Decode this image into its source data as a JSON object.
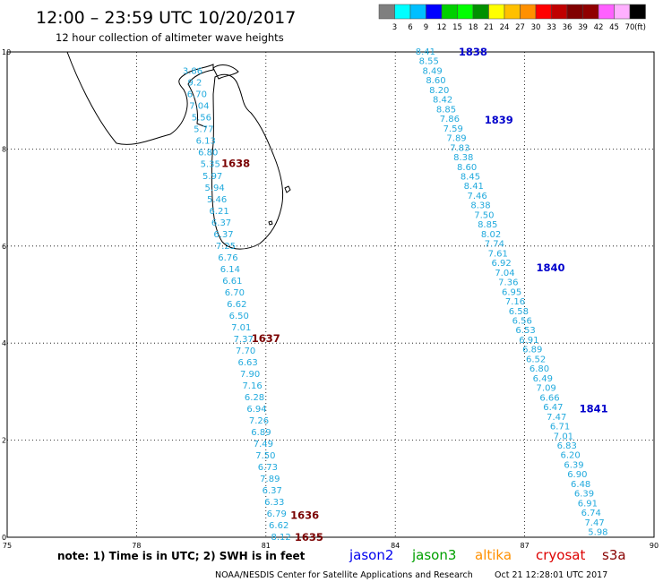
{
  "header": {
    "title": "12:00 – 23:59 UTC 10/20/2017",
    "subtitle": "12 hour collection of altimeter wave heights"
  },
  "scale": {
    "labels": [
      "3",
      "6",
      "9",
      "12",
      "15",
      "18",
      "21",
      "24",
      "27",
      "30",
      "33",
      "36",
      "39",
      "42",
      "45",
      "70",
      "(ft)"
    ],
    "colors": [
      "#7f7f7f",
      "#00ffff",
      "#00bfff",
      "#0000ff",
      "#00d000",
      "#00ff00",
      "#009000",
      "#ffff00",
      "#ffc000",
      "#ff9000",
      "#ff0000",
      "#c00000",
      "#800000",
      "#900000",
      "#ff60ff",
      "#ffb0ff",
      "#000000"
    ]
  },
  "map": {
    "lon_range": [
      75,
      90
    ],
    "lat_range": [
      0,
      10
    ],
    "x_ticks": [
      "75",
      "78",
      "81",
      "84",
      "87",
      "90"
    ],
    "y_ticks": [
      "0",
      "2",
      "4",
      "6",
      "8",
      "10"
    ],
    "value_color": "#22aadd",
    "tracks": [
      {
        "values": [
          "3.86",
          "9.2",
          "6.70",
          "7.04",
          "5.56",
          "5.77",
          "6.13",
          "6.80",
          "5.35",
          "5.97",
          "5.94",
          "5.46",
          "6.21",
          "6.37",
          "6.37",
          "7.25",
          "6.76",
          "6.14",
          "6.61",
          "6.70",
          "6.62",
          "6.50",
          "7.01",
          "7.37",
          "7.70",
          "6.63",
          "7.90",
          "7.16",
          "6.28",
          "6.94",
          "7.26",
          "6.89",
          "7.49",
          "7.50",
          "6.73",
          "7.89",
          "6.37",
          "6.33",
          "6.79",
          "6.62",
          "8.12"
        ],
        "lon_start": 79.3,
        "lat_start": 9.6,
        "lon_end": 81.35,
        "lat_end": 0.0,
        "labels": [
          {
            "text": "1638",
            "lon": 80.3,
            "lat": 7.7
          },
          {
            "text": "1637",
            "lon": 81.0,
            "lat": 4.1
          },
          {
            "text": "1636",
            "lon": 81.9,
            "lat": 0.45
          },
          {
            "text": "1635",
            "lon": 82.0,
            "lat": 0.0
          }
        ],
        "label_color": "#7a0000"
      },
      {
        "values": [
          "8.41",
          "8.55",
          "8.49",
          "8.60",
          "8.20",
          "8.42",
          "8.85",
          "7.86",
          "7.59",
          "7.89",
          "7.83",
          "8.38",
          "8.60",
          "8.45",
          "8.41",
          "7.46",
          "8.38",
          "7.50",
          "8.85",
          "8.02",
          "7.74",
          "7.61",
          "6.92",
          "7.04",
          "7.36",
          "6.95",
          "7.16",
          "6.58",
          "6.56",
          "6.53",
          "6.91",
          "6.89",
          "6.52",
          "6.80",
          "6.49",
          "7.09",
          "6.66",
          "6.47",
          "7.47",
          "6.71",
          "7.01",
          "6.83",
          "6.20",
          "6.39",
          "6.90",
          "6.48",
          "6.39",
          "6.91",
          "6.74",
          "7.47",
          "5.98"
        ],
        "lon_start": 84.7,
        "lat_start": 10.0,
        "lon_end": 88.7,
        "lat_end": 0.1,
        "labels": [
          {
            "text": "1838",
            "lon": 85.8,
            "lat": 10.0
          },
          {
            "text": "1839",
            "lon": 86.4,
            "lat": 8.6
          },
          {
            "text": "1840",
            "lon": 87.6,
            "lat": 5.55
          },
          {
            "text": "1841",
            "lon": 88.6,
            "lat": 2.65
          }
        ],
        "label_color": "#0000cc"
      }
    ]
  },
  "footer": {
    "note": "note: 1) Time is in UTC; 2) SWH is in feet",
    "missions": [
      {
        "name": "jason2",
        "color": "#0000ee"
      },
      {
        "name": "jason3",
        "color": "#00a000"
      },
      {
        "name": "altika",
        "color": "#ff9000"
      },
      {
        "name": "cryosat",
        "color": "#dd0000"
      },
      {
        "name": "s3a",
        "color": "#880000"
      }
    ],
    "credit": "NOAA/NESDIS Center for Satellite Applications and Research",
    "timestamp": "Oct 21 12:28:01 UTC 2017"
  }
}
